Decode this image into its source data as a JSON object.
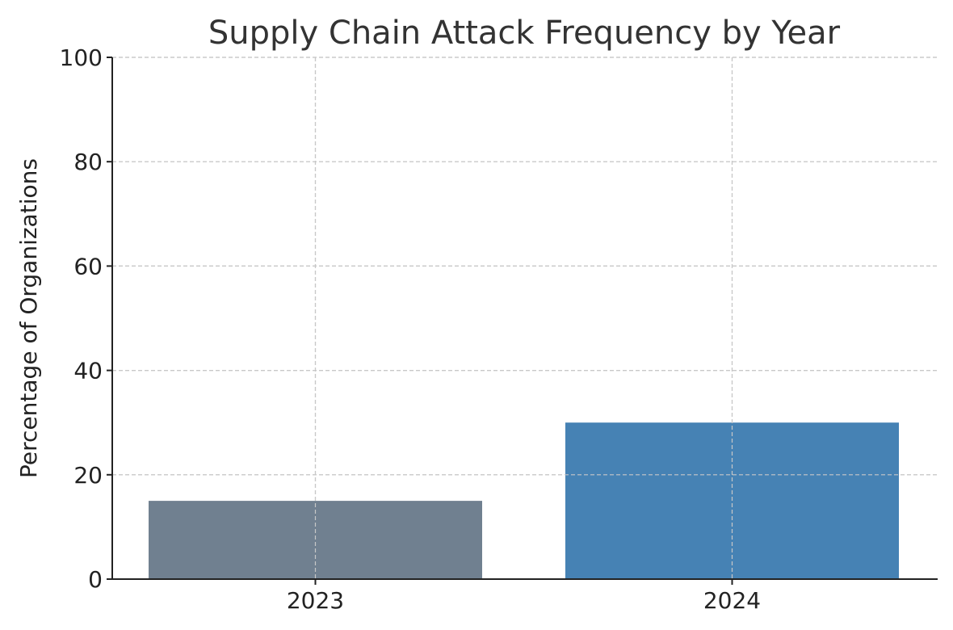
{
  "chart_data": {
    "type": "bar",
    "title": "Supply Chain Attack Frequency by Year",
    "xlabel": "",
    "ylabel": "Percentage of Organizations",
    "categories": [
      "2023",
      "2024"
    ],
    "values": [
      15,
      30
    ],
    "colors": [
      "#708090",
      "#4682b4"
    ],
    "ylim": [
      0,
      100
    ],
    "yticks": [
      0,
      20,
      40,
      60,
      80,
      100
    ],
    "grid": true
  }
}
